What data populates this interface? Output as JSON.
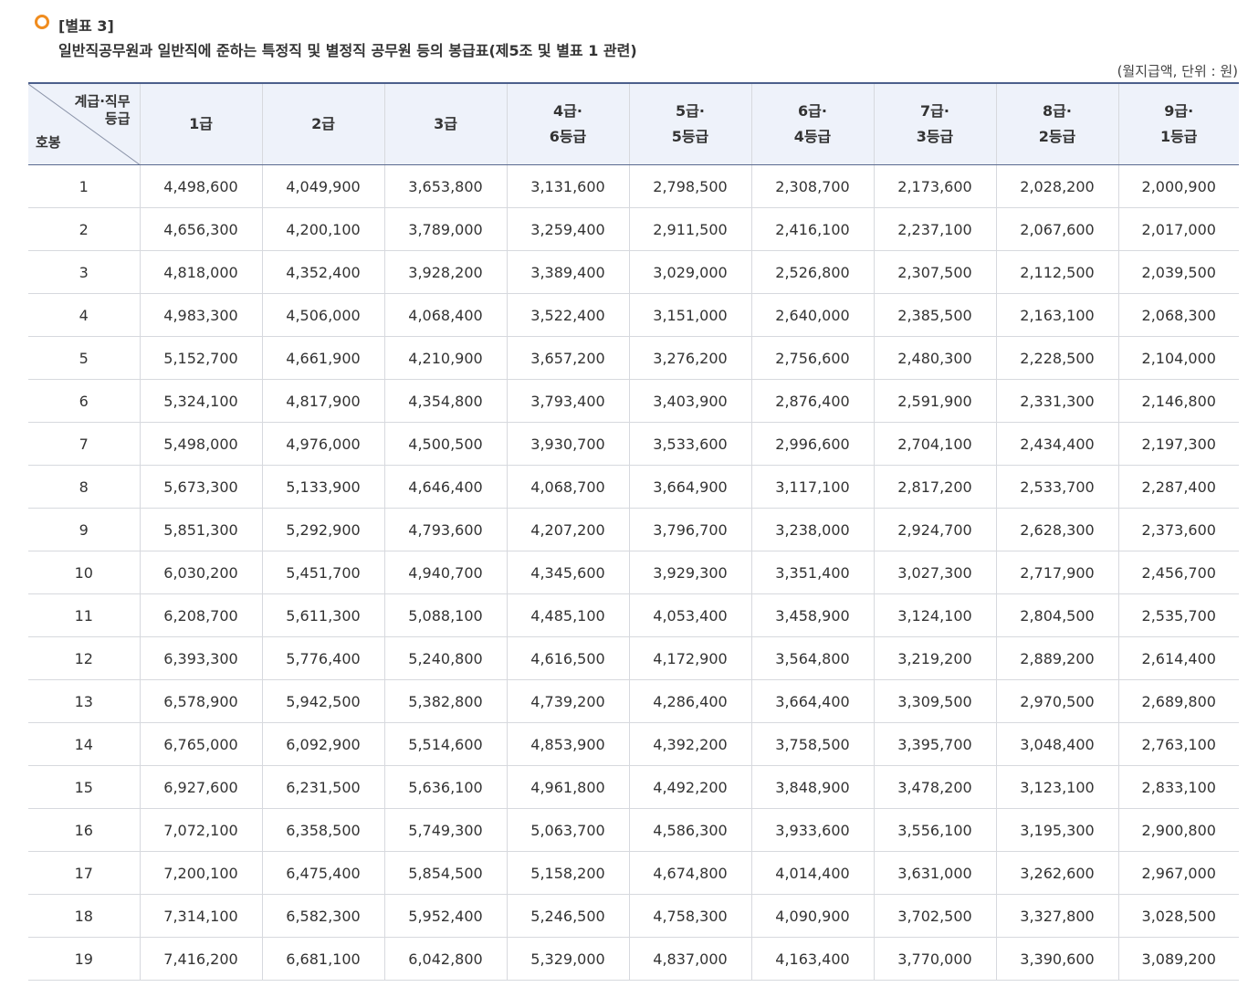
{
  "caption": {
    "tag": "[별표 3]",
    "subtitle": "일반직공무원과 일반직에 준하는 특정직 및 별정직 공무원 등의 봉급표(제5조 및 별표 1 관련)",
    "unit": "(월지급액, 단위 : 원)",
    "bullet_color": "#f08c1e"
  },
  "table": {
    "corner": {
      "top_line1": "계급·직무",
      "top_line2": "등급",
      "bottom": "호봉"
    },
    "columns": [
      {
        "line1": "1급",
        "line2": ""
      },
      {
        "line1": "2급",
        "line2": ""
      },
      {
        "line1": "3급",
        "line2": ""
      },
      {
        "line1": "4급·",
        "line2": "6등급"
      },
      {
        "line1": "5급·",
        "line2": "5등급"
      },
      {
        "line1": "6급·",
        "line2": "4등급"
      },
      {
        "line1": "7급·",
        "line2": "3등급"
      },
      {
        "line1": "8급·",
        "line2": "2등급"
      },
      {
        "line1": "9급·",
        "line2": "1등급"
      }
    ],
    "rows": [
      {
        "step": "1",
        "values": [
          "4,498,600",
          "4,049,900",
          "3,653,800",
          "3,131,600",
          "2,798,500",
          "2,308,700",
          "2,173,600",
          "2,028,200",
          "2,000,900"
        ]
      },
      {
        "step": "2",
        "values": [
          "4,656,300",
          "4,200,100",
          "3,789,000",
          "3,259,400",
          "2,911,500",
          "2,416,100",
          "2,237,100",
          "2,067,600",
          "2,017,000"
        ]
      },
      {
        "step": "3",
        "values": [
          "4,818,000",
          "4,352,400",
          "3,928,200",
          "3,389,400",
          "3,029,000",
          "2,526,800",
          "2,307,500",
          "2,112,500",
          "2,039,500"
        ]
      },
      {
        "step": "4",
        "values": [
          "4,983,300",
          "4,506,000",
          "4,068,400",
          "3,522,400",
          "3,151,000",
          "2,640,000",
          "2,385,500",
          "2,163,100",
          "2,068,300"
        ]
      },
      {
        "step": "5",
        "values": [
          "5,152,700",
          "4,661,900",
          "4,210,900",
          "3,657,200",
          "3,276,200",
          "2,756,600",
          "2,480,300",
          "2,228,500",
          "2,104,000"
        ]
      },
      {
        "step": "6",
        "values": [
          "5,324,100",
          "4,817,900",
          "4,354,800",
          "3,793,400",
          "3,403,900",
          "2,876,400",
          "2,591,900",
          "2,331,300",
          "2,146,800"
        ]
      },
      {
        "step": "7",
        "values": [
          "5,498,000",
          "4,976,000",
          "4,500,500",
          "3,930,700",
          "3,533,600",
          "2,996,600",
          "2,704,100",
          "2,434,400",
          "2,197,300"
        ]
      },
      {
        "step": "8",
        "values": [
          "5,673,300",
          "5,133,900",
          "4,646,400",
          "4,068,700",
          "3,664,900",
          "3,117,100",
          "2,817,200",
          "2,533,700",
          "2,287,400"
        ]
      },
      {
        "step": "9",
        "values": [
          "5,851,300",
          "5,292,900",
          "4,793,600",
          "4,207,200",
          "3,796,700",
          "3,238,000",
          "2,924,700",
          "2,628,300",
          "2,373,600"
        ]
      },
      {
        "step": "10",
        "values": [
          "6,030,200",
          "5,451,700",
          "4,940,700",
          "4,345,600",
          "3,929,300",
          "3,351,400",
          "3,027,300",
          "2,717,900",
          "2,456,700"
        ]
      },
      {
        "step": "11",
        "values": [
          "6,208,700",
          "5,611,300",
          "5,088,100",
          "4,485,100",
          "4,053,400",
          "3,458,900",
          "3,124,100",
          "2,804,500",
          "2,535,700"
        ]
      },
      {
        "step": "12",
        "values": [
          "6,393,300",
          "5,776,400",
          "5,240,800",
          "4,616,500",
          "4,172,900",
          "3,564,800",
          "3,219,200",
          "2,889,200",
          "2,614,400"
        ]
      },
      {
        "step": "13",
        "values": [
          "6,578,900",
          "5,942,500",
          "5,382,800",
          "4,739,200",
          "4,286,400",
          "3,664,400",
          "3,309,500",
          "2,970,500",
          "2,689,800"
        ]
      },
      {
        "step": "14",
        "values": [
          "6,765,000",
          "6,092,900",
          "5,514,600",
          "4,853,900",
          "4,392,200",
          "3,758,500",
          "3,395,700",
          "3,048,400",
          "2,763,100"
        ]
      },
      {
        "step": "15",
        "values": [
          "6,927,600",
          "6,231,500",
          "5,636,100",
          "4,961,800",
          "4,492,200",
          "3,848,900",
          "3,478,200",
          "3,123,100",
          "2,833,100"
        ]
      },
      {
        "step": "16",
        "values": [
          "7,072,100",
          "6,358,500",
          "5,749,300",
          "5,063,700",
          "4,586,300",
          "3,933,600",
          "3,556,100",
          "3,195,300",
          "2,900,800"
        ]
      },
      {
        "step": "17",
        "values": [
          "7,200,100",
          "6,475,400",
          "5,854,500",
          "5,158,200",
          "4,674,800",
          "4,014,400",
          "3,631,000",
          "3,262,600",
          "2,967,000"
        ]
      },
      {
        "step": "18",
        "values": [
          "7,314,100",
          "6,582,300",
          "5,952,400",
          "5,246,500",
          "4,758,300",
          "4,090,900",
          "3,702,500",
          "3,327,800",
          "3,028,500"
        ]
      },
      {
        "step": "19",
        "values": [
          "7,416,200",
          "6,681,100",
          "6,042,800",
          "5,329,000",
          "4,837,000",
          "4,163,400",
          "3,770,000",
          "3,390,600",
          "3,089,200"
        ]
      }
    ]
  },
  "colors": {
    "header_bg": "#eef2fa",
    "header_rule": "#4c5f8c",
    "grid": "#d7d9de"
  }
}
